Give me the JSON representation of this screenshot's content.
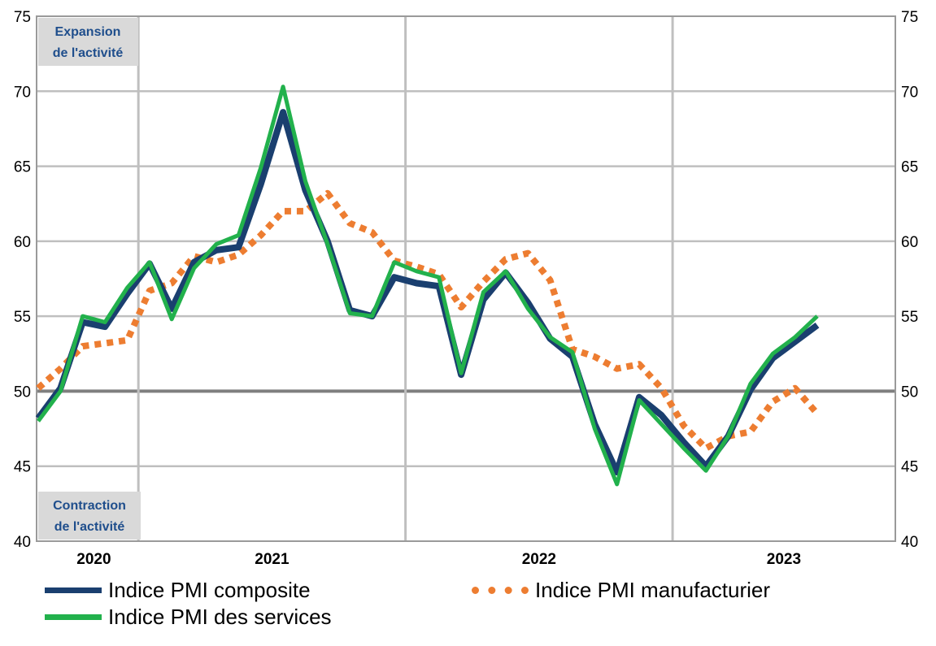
{
  "chart_data": {
    "type": "line",
    "ylim": [
      40,
      75
    ],
    "yticks": [
      "40",
      "45",
      "50",
      "55",
      "60",
      "65",
      "70",
      "75"
    ],
    "xtick_labels": [
      "2020",
      "2021",
      "2022",
      "2023"
    ],
    "annotations": {
      "expansion": [
        "Expansion",
        "de l'activité"
      ],
      "contraction": [
        "Contraction",
        "de l'activité"
      ]
    },
    "colors": {
      "composite": "#1a3f6f",
      "services": "#22b14c",
      "manufacturier": "#ed7d31"
    },
    "series": [
      {
        "key": "composite",
        "name": "Indice PMI composite",
        "values": [
          48.2,
          50.2,
          54.6,
          54.3,
          56.5,
          58.5,
          55.5,
          58.6,
          59.4,
          59.6,
          63.8,
          68.6,
          63.4,
          60.0,
          55.4,
          55.0,
          57.6,
          57.2,
          57.0,
          51.1,
          56.1,
          57.9,
          55.9,
          53.5,
          52.3,
          47.8,
          44.6,
          49.6,
          48.4,
          46.6,
          45.0,
          47.0,
          50.1,
          52.2,
          53.3,
          54.4
        ]
      },
      {
        "key": "services",
        "name": "Indice PMI des services",
        "values": [
          48.0,
          50.0,
          55.0,
          54.6,
          56.9,
          58.6,
          54.8,
          58.2,
          59.8,
          60.4,
          64.9,
          70.3,
          64.0,
          59.8,
          55.2,
          55.0,
          58.6,
          58.0,
          57.6,
          51.2,
          56.6,
          58.0,
          55.5,
          53.6,
          52.6,
          47.5,
          43.8,
          49.4,
          47.8,
          46.2,
          44.7,
          47.0,
          50.5,
          52.5,
          53.6,
          55.0
        ]
      },
      {
        "key": "manufacturier",
        "name": "Indice PMI manufacturier",
        "values": [
          50.2,
          51.5,
          53.0,
          53.2,
          53.4,
          56.7,
          57.2,
          59.0,
          58.6,
          59.1,
          60.4,
          62.0,
          62.0,
          63.2,
          61.2,
          60.6,
          58.7,
          58.3,
          57.8,
          55.6,
          57.3,
          58.8,
          59.2,
          57.4,
          52.8,
          52.3,
          51.5,
          51.8,
          50.2,
          47.7,
          46.2,
          47.0,
          47.3,
          49.3,
          50.2,
          48.5
        ]
      }
    ]
  }
}
